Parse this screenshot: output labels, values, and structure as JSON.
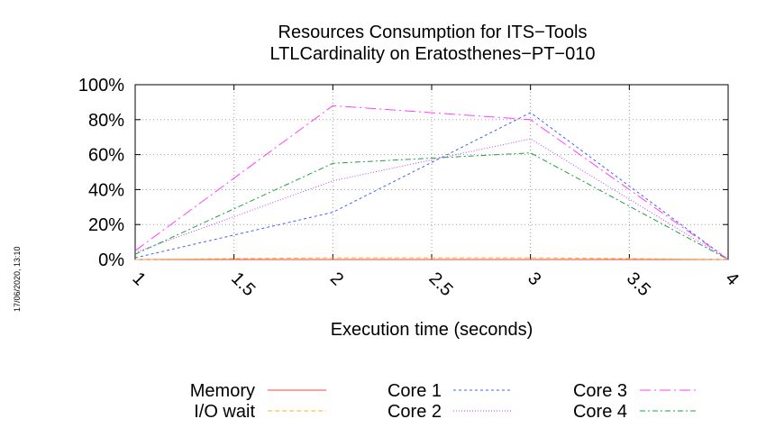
{
  "stamp": "17/06/2020, 13:10",
  "chart_data": {
    "type": "line",
    "title": "Resources Consumption for ITS−Tools",
    "subtitle": "LTLCardinality on Eratosthenes−PT−010",
    "xlabel": "Execution time (seconds)",
    "ylabel": "",
    "xlim": [
      1,
      4
    ],
    "ylim": [
      0,
      100
    ],
    "xticks": [
      "1",
      "1.5",
      "2",
      "2.5",
      "3",
      "3.5",
      "4"
    ],
    "yticks": [
      "0%",
      "20%",
      "40%",
      "60%",
      "80%",
      "100%"
    ],
    "grid": true,
    "legend_position": "bottom",
    "series": [
      {
        "name": "Memory",
        "color": "#ff4040",
        "dash": "",
        "x": [
          1,
          2,
          3,
          4
        ],
        "values": [
          0,
          0,
          0,
          0
        ]
      },
      {
        "name": "I/O wait",
        "color": "#ffb020",
        "dash": "5 3",
        "x": [
          1,
          2,
          3,
          4
        ],
        "values": [
          0,
          1,
          1,
          0
        ]
      },
      {
        "name": "Core 1",
        "color": "#4060ff",
        "dash": "3 3",
        "x": [
          1,
          2,
          3,
          4
        ],
        "values": [
          1,
          27,
          84,
          0
        ]
      },
      {
        "name": "Core 2",
        "color": "#c040ff",
        "dash": "1 2",
        "x": [
          1,
          2,
          3,
          4
        ],
        "values": [
          4,
          45,
          69,
          0
        ]
      },
      {
        "name": "Core 3",
        "color": "#ff40ff",
        "dash": "12 4 2 4",
        "x": [
          1,
          2,
          3,
          4
        ],
        "values": [
          5,
          88,
          80,
          0
        ]
      },
      {
        "name": "Core 4",
        "color": "#20a040",
        "dash": "6 3 2 3",
        "x": [
          1,
          2,
          3,
          4
        ],
        "values": [
          3,
          55,
          61,
          0
        ]
      }
    ]
  }
}
